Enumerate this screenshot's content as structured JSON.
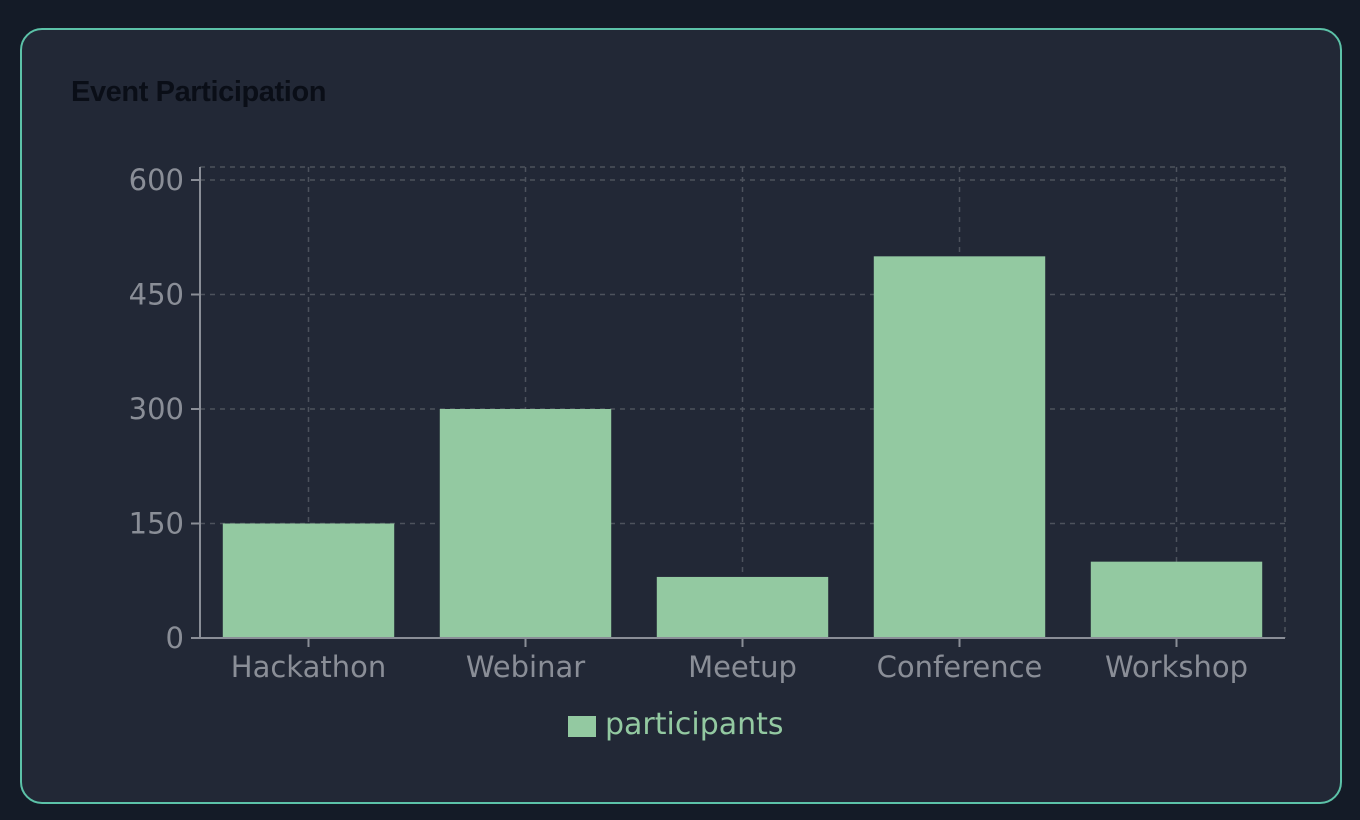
{
  "card": {
    "title": "Event Participation"
  },
  "colors": {
    "page_background": "#141b27",
    "card_background": "#222836",
    "card_border": "#5cc2a8",
    "bar_fill": "#93c9a1",
    "grid": "#4d525c",
    "axis": "#8a8e97",
    "tick_text": "#8a8e97",
    "legend_text": "#93c9a1"
  },
  "chart_data": {
    "type": "bar",
    "categories": [
      "Hackathon",
      "Webinar",
      "Meetup",
      "Conference",
      "Workshop"
    ],
    "series": [
      {
        "name": "participants",
        "values": [
          150,
          300,
          80,
          500,
          100
        ]
      }
    ],
    "yticks": [
      0,
      150,
      300,
      450,
      600
    ],
    "ylim": [
      0,
      600
    ],
    "grid": true,
    "grid_style": "dashed",
    "legend_position": "bottom-center"
  }
}
